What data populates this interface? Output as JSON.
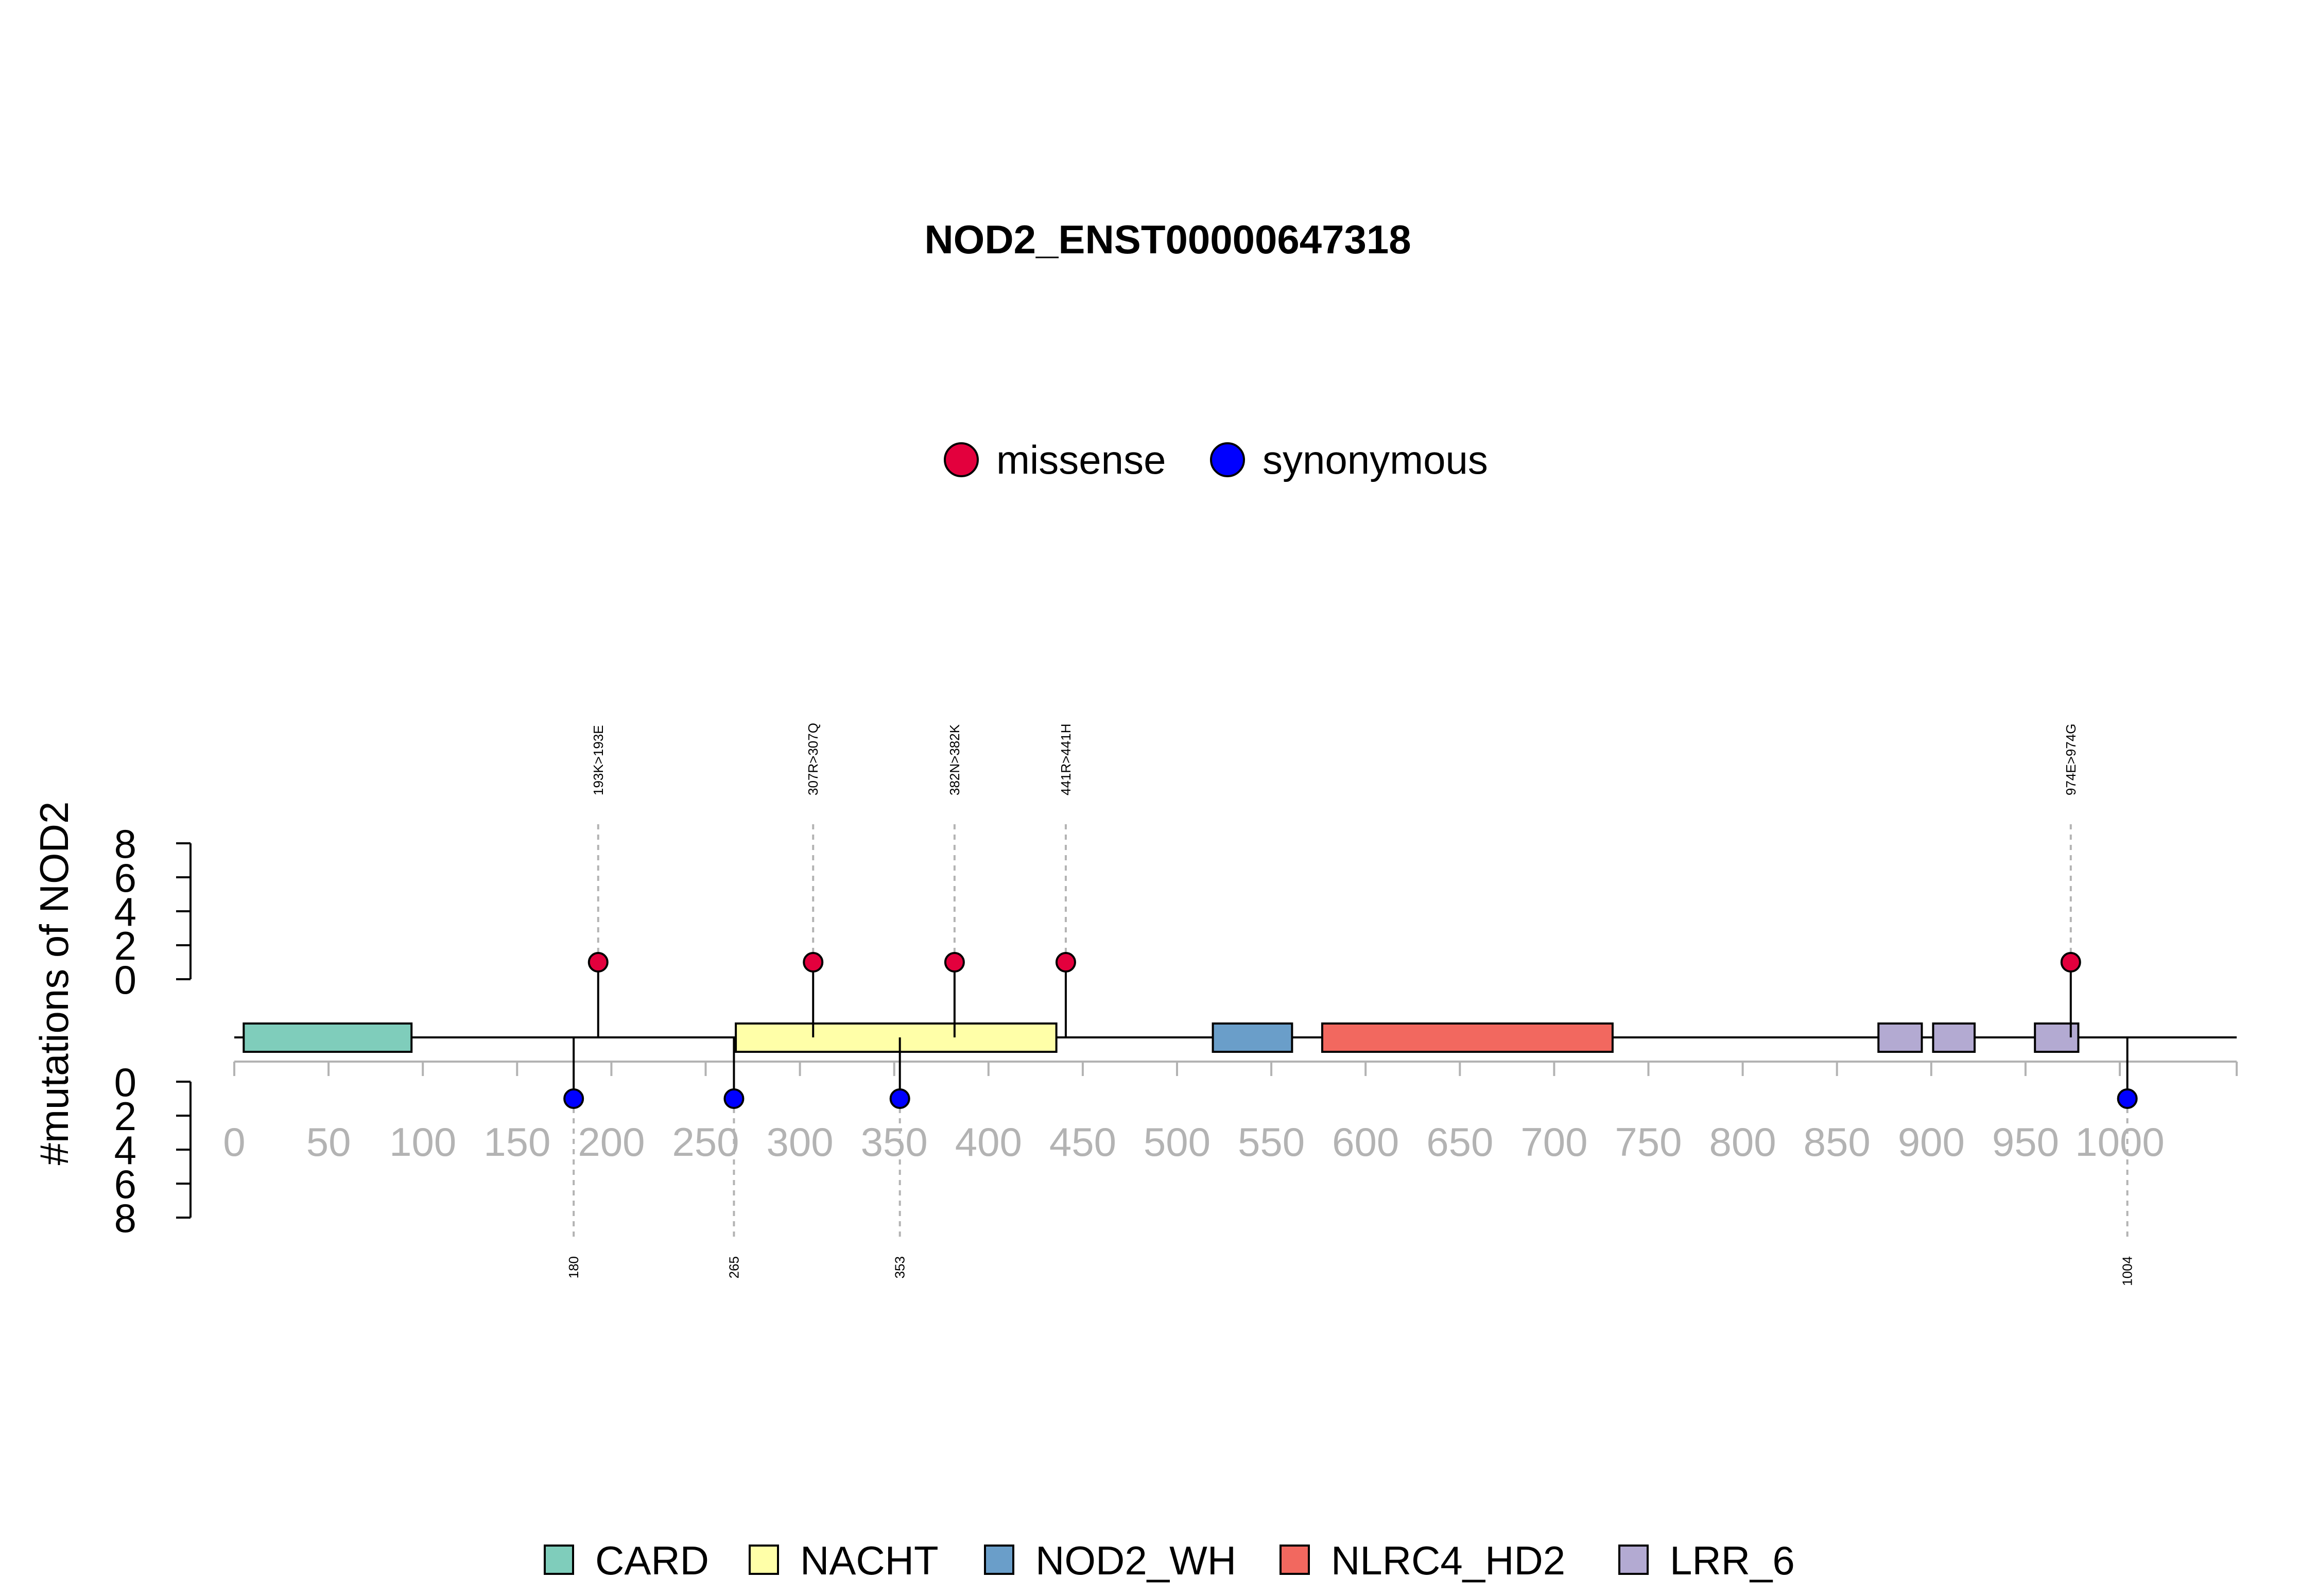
{
  "chart_data": {
    "type": "lollipop",
    "title": "NOD2_ENST00000647318",
    "ylabel": "#mutations of NOD2",
    "x_ticks": [
      "0",
      "50",
      "100",
      "150",
      "200",
      "250",
      "300",
      "350",
      "400",
      "450",
      "500",
      "550",
      "600",
      "650",
      "700",
      "750",
      "800",
      "850",
      "900",
      "950",
      "1000"
    ],
    "xlim": [
      0,
      1050
    ],
    "y_ticks": [
      "0",
      "2",
      "4",
      "6",
      "8"
    ],
    "ylim": [
      0,
      8
    ],
    "mutation_legend": [
      {
        "label": "missense",
        "color": "#e3003d"
      },
      {
        "label": "synonymous",
        "color": "#0000ff"
      }
    ],
    "missense": [
      {
        "pos": 193,
        "count": 1,
        "label": "193K>193E"
      },
      {
        "pos": 307,
        "count": 1,
        "label": "307R>307Q"
      },
      {
        "pos": 382,
        "count": 1,
        "label": "382N>382K"
      },
      {
        "pos": 441,
        "count": 1,
        "label": "441R>441H"
      },
      {
        "pos": 974,
        "count": 1,
        "label": "974E>974G"
      }
    ],
    "synonymous": [
      {
        "pos": 180,
        "count": 1,
        "label": "180"
      },
      {
        "pos": 265,
        "count": 1,
        "label": "265"
      },
      {
        "pos": 353,
        "count": 1,
        "label": "353"
      },
      {
        "pos": 1004,
        "count": 1,
        "label": "1004"
      }
    ],
    "domains": [
      {
        "name": "CARD",
        "start": 5,
        "end": 94
      },
      {
        "name": "NACHT",
        "start": 266,
        "end": 436
      },
      {
        "name": "NOD2_WH",
        "start": 519,
        "end": 561
      },
      {
        "name": "NLRC4_HD2",
        "start": 577,
        "end": 731
      },
      {
        "name": "LRR_6",
        "start": 872,
        "end": 895
      },
      {
        "name": "LRR_6",
        "start": 901,
        "end": 923
      },
      {
        "name": "LRR_6",
        "start": 955,
        "end": 978
      }
    ],
    "domain_legend": [
      {
        "name": "CARD",
        "color": "#7fcdbb"
      },
      {
        "name": "NACHT",
        "color": "#ffffa8"
      },
      {
        "name": "NOD2_WH",
        "color": "#6a9ec9"
      },
      {
        "name": "NLRC4_HD2",
        "color": "#f2685f"
      },
      {
        "name": "LRR_6",
        "color": "#b3aad2"
      }
    ]
  }
}
